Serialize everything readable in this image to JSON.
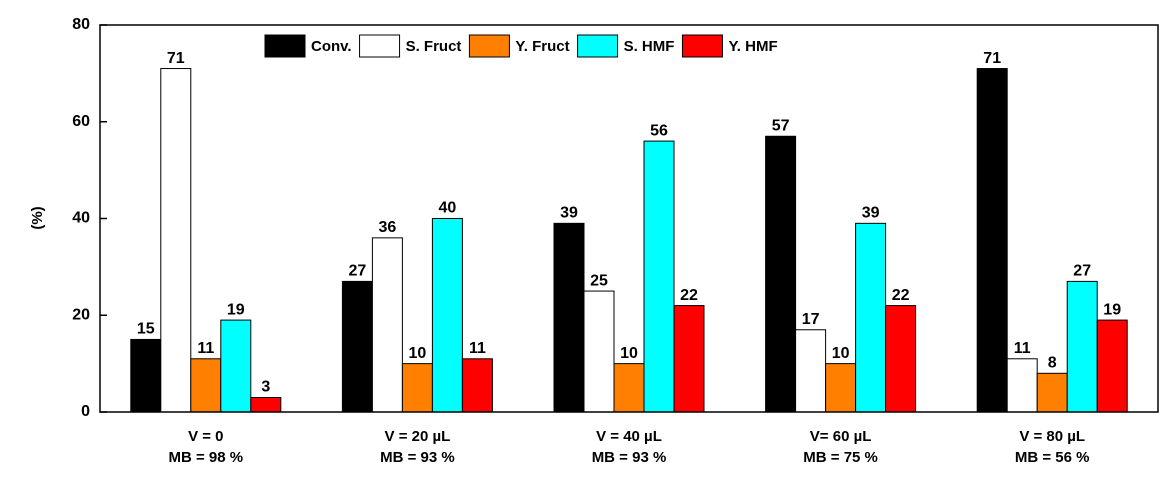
{
  "chart_data": {
    "type": "bar",
    "ylabel": "(%)",
    "categories": [
      [
        "V = 0",
        "MB = 98 %"
      ],
      [
        "V = 20 µL",
        "MB = 93 %"
      ],
      [
        "V = 40 µL",
        "MB = 93 %"
      ],
      [
        "V= 60 µL",
        "MB = 75 %"
      ],
      [
        "V = 80 µL",
        "MB = 56 %"
      ]
    ],
    "series": [
      {
        "name": "Conv.",
        "color": "#000000",
        "values": [
          15,
          27,
          39,
          57,
          71
        ]
      },
      {
        "name": "S. Fruct",
        "color": "#ffffff",
        "values": [
          71,
          36,
          25,
          17,
          11
        ]
      },
      {
        "name": "Y. Fruct",
        "color": "#ff8000",
        "values": [
          11,
          10,
          10,
          10,
          8
        ]
      },
      {
        "name": "S. HMF",
        "color": "#00ffff",
        "values": [
          19,
          40,
          56,
          39,
          27
        ]
      },
      {
        "name": "Y. HMF",
        "color": "#ff0000",
        "values": [
          3,
          11,
          22,
          22,
          19
        ]
      }
    ],
    "ylim": [
      0,
      80
    ],
    "yticks": [
      0,
      20,
      40,
      60,
      80
    ],
    "legend": "top"
  }
}
